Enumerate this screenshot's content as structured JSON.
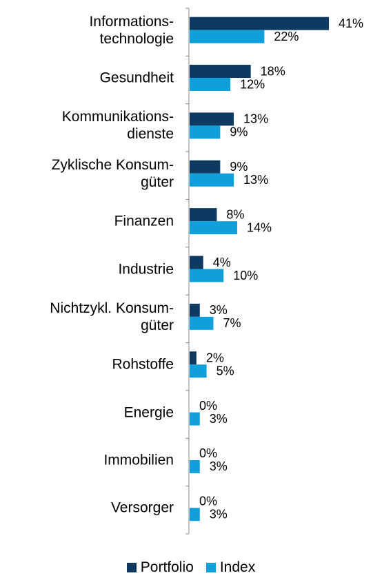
{
  "chart_data": {
    "type": "bar",
    "orientation": "horizontal",
    "categories": [
      "Informations-\ntechnologie",
      "Gesundheit",
      "Kommunikations-\ndienste",
      "Zyklische Konsum-\ngüter",
      "Finanzen",
      "Industrie",
      "Nichtzykl. Konsum-\ngüter",
      "Rohstoffe",
      "Energie",
      "Immobilien",
      "Versorger"
    ],
    "series": [
      {
        "name": "Portfolio",
        "color": "#0e3a62",
        "values": [
          41,
          18,
          13,
          9,
          8,
          4,
          3,
          2,
          0,
          0,
          0
        ],
        "value_labels": [
          "41%",
          "18%",
          "13%",
          "9%",
          "8%",
          "4%",
          "3%",
          "2%",
          "0%",
          "0%",
          "0%"
        ]
      },
      {
        "name": "Index",
        "color": "#0fa0dc",
        "values": [
          22,
          12,
          9,
          13,
          14,
          10,
          7,
          5,
          3,
          3,
          3
        ],
        "value_labels": [
          "22%",
          "12%",
          "9%",
          "13%",
          "14%",
          "10%",
          "7%",
          "5%",
          "3%",
          "3%",
          "3%"
        ]
      }
    ],
    "legend": "bottom"
  }
}
